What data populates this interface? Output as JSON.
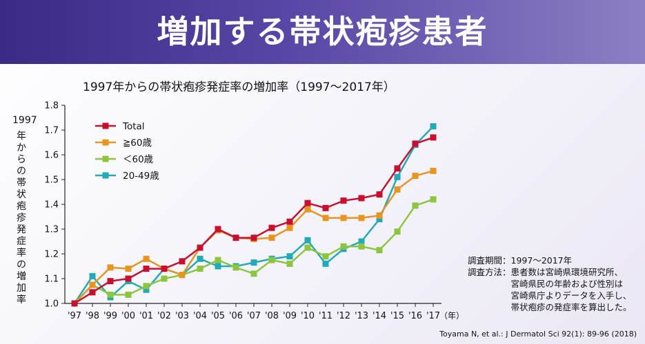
{
  "header": {
    "title": "増加する帯状疱疹患者"
  },
  "chart_data": {
    "type": "line",
    "title": "1997年からの帯状疱疹発症率の増加率（1997～2017年）",
    "ylabel_year": "1997",
    "ylabel": "年からの帯状疱疹発症率の増加率",
    "xlabel": "（年）",
    "categories": [
      "'97",
      "'98",
      "'99",
      "'00",
      "'01",
      "'02",
      "'03",
      "'04",
      "'05",
      "'06",
      "'07",
      "'08",
      "'09",
      "'10",
      "'11",
      "'12",
      "'13",
      "'14",
      "'15",
      "'16",
      "'17"
    ],
    "ylim": [
      1.0,
      1.8
    ],
    "yticks": [
      "1.0",
      "1.1",
      "1.2",
      "1.3",
      "1.4",
      "1.5",
      "1.6",
      "1.7",
      "1.8"
    ],
    "grid": false,
    "legend_position": "top-left",
    "series": [
      {
        "name": "Total",
        "color": "#c8102e",
        "values": [
          1.0,
          1.045,
          1.09,
          1.1,
          1.14,
          1.14,
          1.17,
          1.225,
          1.3,
          1.265,
          1.265,
          1.305,
          1.33,
          1.405,
          1.385,
          1.415,
          1.425,
          1.44,
          1.545,
          1.645,
          1.67
        ]
      },
      {
        "name": "≧60歳",
        "color": "#e8951f",
        "values": [
          1.0,
          1.075,
          1.145,
          1.14,
          1.18,
          1.14,
          1.115,
          1.225,
          1.295,
          1.265,
          1.26,
          1.265,
          1.305,
          1.38,
          1.345,
          1.345,
          1.345,
          1.355,
          1.46,
          1.515,
          1.535
        ]
      },
      {
        "name": "＜60歳",
        "color": "#8cc63e",
        "values": [
          1.0,
          1.075,
          1.035,
          1.035,
          1.07,
          1.1,
          1.115,
          1.14,
          1.175,
          1.145,
          1.12,
          1.175,
          1.16,
          1.225,
          1.19,
          1.23,
          1.23,
          1.215,
          1.29,
          1.395,
          1.42
        ]
      },
      {
        "name": "20-49歳",
        "color": "#22aab8",
        "values": [
          1.0,
          1.11,
          1.025,
          1.09,
          1.055,
          1.14,
          1.115,
          1.18,
          1.15,
          1.15,
          1.165,
          1.18,
          1.19,
          1.255,
          1.16,
          1.22,
          1.25,
          1.34,
          1.51,
          1.64,
          1.715
        ]
      }
    ]
  },
  "notes": {
    "period_label": "調査期間：",
    "period_value": "1997～2017年",
    "method_label": "調査方法：",
    "method_line1": "患者数は宮崎県環境研究所、",
    "method_line2": "宮崎県民の年齢および性別は",
    "method_line3": "宮崎県庁よりデータを入手し、",
    "method_line4": "帯状疱疹の発症率を算出した。"
  },
  "citation": "Toyama N, et al.: J Dermatol Sci 92(1): 89-96 (2018)"
}
